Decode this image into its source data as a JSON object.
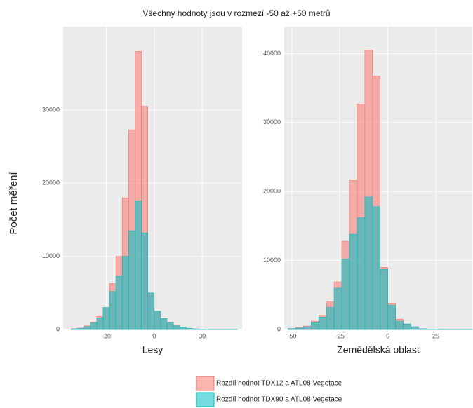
{
  "title": "Všechny hodnoty jsou v rozmezí -50 až +50 metrů",
  "ylabel": "Počet měření",
  "chart_data": [
    {
      "type": "histogram",
      "xlabel": "Lesy",
      "bins": [
        -52,
        -48,
        -44,
        -40,
        -36,
        -32,
        -28,
        -24,
        -20,
        -16,
        -12,
        -8,
        -4,
        0,
        4,
        8,
        12,
        16,
        20,
        24,
        28,
        32,
        36,
        40,
        44,
        48,
        52
      ],
      "series": [
        {
          "name": "Rozdíl hodnot TDX12 a ATL08 Vegetace",
          "color": "#f8766d",
          "values": [
            100,
            200,
            500,
            1000,
            1800,
            3000,
            6300,
            10000,
            18000,
            27300,
            38000,
            30500,
            5000,
            2500,
            1500,
            900,
            600,
            300,
            150,
            100,
            50,
            20,
            20,
            20,
            20,
            20
          ]
        },
        {
          "name": "Rozdíl hodnot TDX90 a ATL08 Vegetace",
          "color": "#00bfc4",
          "values": [
            80,
            150,
            400,
            900,
            1600,
            3000,
            5200,
            7300,
            10000,
            13500,
            17500,
            13200,
            5000,
            2500,
            1500,
            900,
            500,
            300,
            150,
            80,
            40,
            20,
            20,
            20,
            20,
            20
          ]
        }
      ],
      "xlim": [
        -57,
        55
      ],
      "ylim": [
        0,
        41400
      ],
      "xticks": [
        -30,
        0,
        30
      ],
      "yticks": [
        0,
        10000,
        20000,
        30000
      ],
      "grid": true
    },
    {
      "type": "histogram",
      "xlabel": "Zemědělská oblast",
      "bins": [
        -52,
        -48,
        -44,
        -40,
        -36,
        -32,
        -28,
        -24,
        -20,
        -16,
        -12,
        -8,
        -4,
        0,
        4,
        8,
        12,
        16,
        20,
        24,
        28,
        32,
        36,
        40,
        44
      ],
      "series": [
        {
          "color": "#f8766d",
          "values": [
            150,
            300,
            500,
            1200,
            2100,
            4000,
            6900,
            12800,
            21600,
            32700,
            40500,
            36700,
            9000,
            3800,
            1500,
            800,
            400,
            100,
            50,
            30,
            20,
            20,
            20,
            20
          ]
        },
        {
          "color": "#00bfc4",
          "values": [
            100,
            200,
            400,
            1000,
            1800,
            3200,
            6000,
            10200,
            13800,
            16200,
            19200,
            17800,
            8700,
            3500,
            1200,
            800,
            400,
            100,
            50,
            30,
            20,
            20,
            20,
            20
          ]
        }
      ],
      "xlim": [
        -54,
        44
      ],
      "ylim": [
        0,
        43900
      ],
      "xticks": [
        -50,
        -25,
        0,
        25
      ],
      "yticks": [
        0,
        10000,
        20000,
        30000,
        40000
      ],
      "grid": true
    }
  ]
}
